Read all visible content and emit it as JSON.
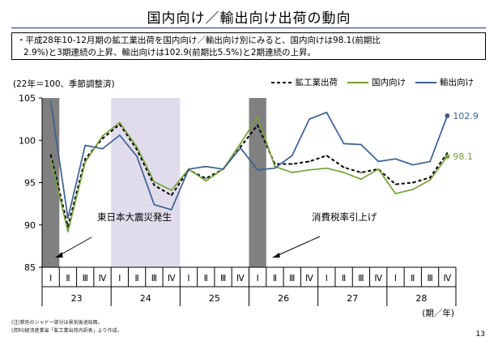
{
  "header": {
    "title": "国内向け／輸出向け出荷の動向",
    "summary_line1": "・平成28年10-12月期の鉱工業出荷を国内向け／輸出向け別にみると、国内向けは98.1(前期比",
    "summary_line2": "2.9%)と3期連続の上昇、輸出向けは102.9(前期比5.5%)と2期連続の上昇。"
  },
  "unit_note": "(22年＝100、季節調整済)",
  "legend": {
    "items": [
      {
        "label": "鉱工業出荷",
        "color": "#000000",
        "style": "dashed"
      },
      {
        "label": "国内向け",
        "color": "#76a03a",
        "style": "solid"
      },
      {
        "label": "輸出向け",
        "color": "#3c5f91",
        "style": "solid"
      }
    ]
  },
  "chart_data": {
    "type": "line",
    "ylim": [
      85,
      105
    ],
    "yticks": [
      85,
      90,
      95,
      100,
      105
    ],
    "quarter_labels": [
      "Ⅰ",
      "Ⅱ",
      "Ⅲ",
      "Ⅳ",
      "Ⅰ",
      "Ⅱ",
      "Ⅲ",
      "Ⅳ",
      "Ⅰ",
      "Ⅱ",
      "Ⅲ",
      "Ⅳ",
      "Ⅰ",
      "Ⅱ",
      "Ⅲ",
      "Ⅳ",
      "Ⅰ",
      "Ⅱ",
      "Ⅲ",
      "Ⅳ",
      "Ⅰ",
      "Ⅱ",
      "Ⅲ",
      "Ⅳ"
    ],
    "years": [
      {
        "label": "23",
        "start": 0,
        "end": 3
      },
      {
        "label": "24",
        "start": 4,
        "end": 7
      },
      {
        "label": "25",
        "start": 8,
        "end": 11
      },
      {
        "label": "26",
        "start": 12,
        "end": 15
      },
      {
        "label": "27",
        "start": 16,
        "end": 19
      },
      {
        "label": "28",
        "start": 20,
        "end": 23
      }
    ],
    "x_unit_label": "(期／年)",
    "series": [
      {
        "name": "鉱工業出荷",
        "color": "#000000",
        "dashed": true,
        "values": [
          98.3,
          89.8,
          97.8,
          100.2,
          101.9,
          98.9,
          94.7,
          93.5,
          96.5,
          95.5,
          96.6,
          99.2,
          101.8,
          97.2,
          97.2,
          97.5,
          98.2,
          96.8,
          96.2,
          96.6,
          94.8,
          95.0,
          95.6,
          98.5
        ]
      },
      {
        "name": "国内向け",
        "color": "#76a03a",
        "dashed": false,
        "values": [
          97.8,
          89.2,
          97.4,
          100.5,
          102.1,
          99.2,
          95.1,
          94.1,
          96.6,
          95.2,
          96.6,
          99.6,
          102.8,
          96.9,
          96.2,
          96.5,
          96.7,
          96.2,
          95.4,
          96.6,
          93.7,
          94.2,
          95.3,
          98.1
        ]
      },
      {
        "name": "輸出向け",
        "color": "#3c5f91",
        "dashed": false,
        "values": [
          104.6,
          90.8,
          99.4,
          99.0,
          100.6,
          98.1,
          92.4,
          91.8,
          96.6,
          96.9,
          96.6,
          99.1,
          96.5,
          96.7,
          98.2,
          102.5,
          103.3,
          99.6,
          99.5,
          97.5,
          97.8,
          97.1,
          97.5,
          102.9
        ]
      }
    ],
    "end_labels": [
      {
        "series": "輸出向け",
        "text": "102.9",
        "color": "#3c5f91"
      },
      {
        "series": "国内向け",
        "text": "98.1",
        "color": "#76a03a"
      }
    ],
    "shaded_periods": [
      {
        "from": 0,
        "to": 0,
        "color": "#808080"
      },
      {
        "from": 4,
        "to": 7,
        "color": "#e0dcec"
      },
      {
        "from": 12,
        "to": 12,
        "color": "#808080"
      }
    ],
    "annotations": [
      {
        "text": "東日本大震災発生",
        "arrow_to_quarter": 0
      },
      {
        "text": "消費税率引上げ",
        "arrow_to_quarter": 12
      }
    ]
  },
  "footnotes": {
    "note1": "(注)紫色のシャドー部分は景気後退局面。",
    "note2": "(資料)経済産業省「鉱工業出荷内訳表」より作成。"
  },
  "page_number": "13"
}
